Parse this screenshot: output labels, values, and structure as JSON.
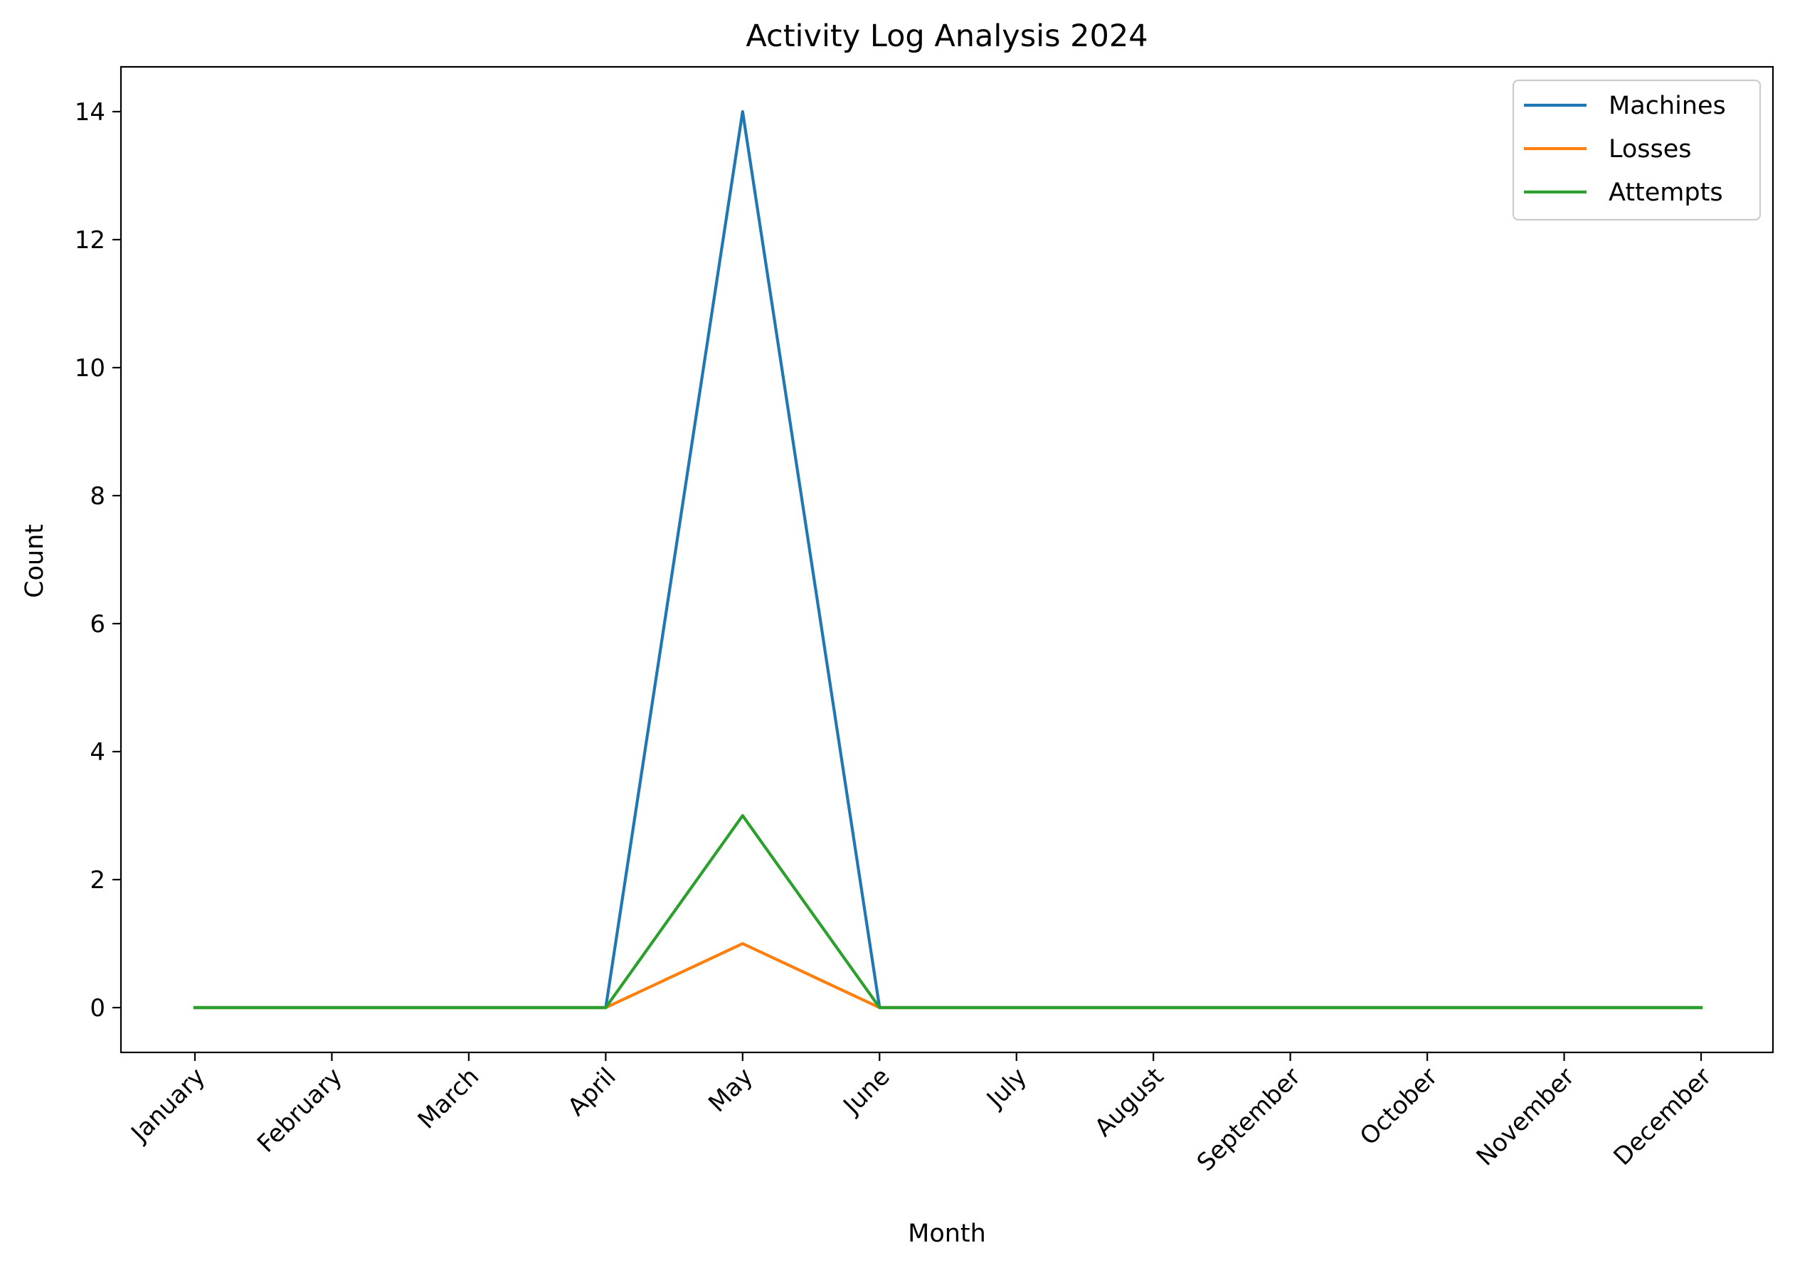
{
  "chart_data": {
    "type": "line",
    "title": "Activity Log Analysis 2024",
    "xlabel": "Month",
    "ylabel": "Count",
    "categories": [
      "January",
      "February",
      "March",
      "April",
      "May",
      "June",
      "July",
      "August",
      "September",
      "October",
      "November",
      "December"
    ],
    "series": [
      {
        "name": "Machines",
        "color": "#1f77b4",
        "values": [
          0,
          0,
          0,
          0,
          14,
          0,
          0,
          0,
          0,
          0,
          0,
          0
        ]
      },
      {
        "name": "Losses",
        "color": "#ff7f0e",
        "values": [
          0,
          0,
          0,
          0,
          1,
          0,
          0,
          0,
          0,
          0,
          0,
          0
        ]
      },
      {
        "name": "Attempts",
        "color": "#2ca02c",
        "values": [
          0,
          0,
          0,
          0,
          3,
          0,
          0,
          0,
          0,
          0,
          0,
          0
        ]
      }
    ],
    "yticks": [
      0,
      2,
      4,
      6,
      8,
      10,
      12,
      14
    ],
    "ylim": [
      -0.7,
      14.7
    ],
    "legend_position": "top-right",
    "grid": false
  }
}
